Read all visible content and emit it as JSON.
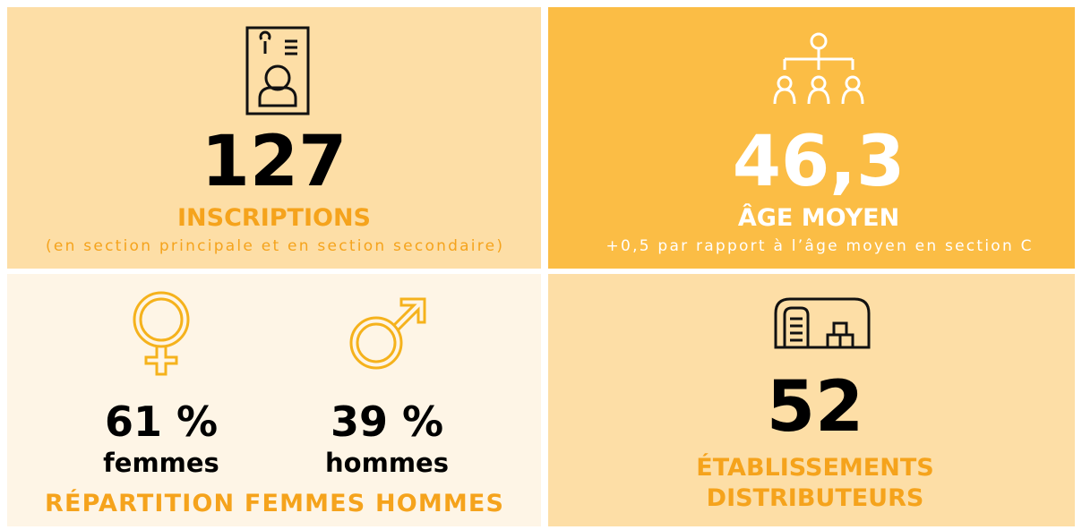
{
  "panels": {
    "inscriptions": {
      "value": "127",
      "label": "INSCRIPTIONS",
      "note": "(en section principale et en section secondaire)"
    },
    "age": {
      "value": "46,3",
      "label": "ÂGE MOYEN",
      "note": "+0,5 par rapport à l’âge moyen en section C"
    },
    "repartition": {
      "women": {
        "value": "61 %",
        "label": "femmes"
      },
      "men": {
        "value": "39 %",
        "label": "hommes"
      },
      "label": "RÉPARTITION FEMMES HOMMES"
    },
    "etablissements": {
      "value": "52",
      "label_lines": [
        "ÉTABLISSEMENTS",
        "DISTRIBUTEURS"
      ]
    }
  }
}
